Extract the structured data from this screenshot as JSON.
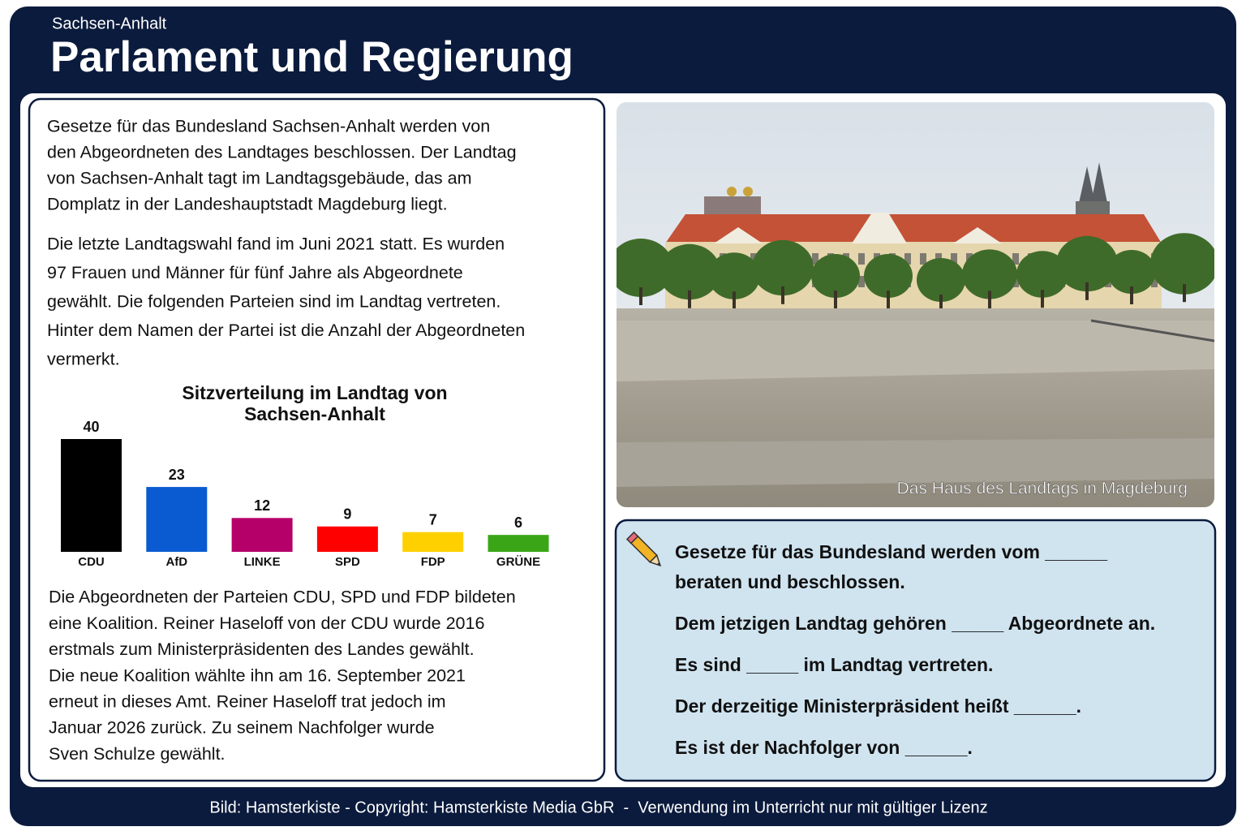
{
  "header": {
    "region": "Sachsen-Anhalt",
    "title": "Parlament und Regierung"
  },
  "intro": {
    "paragraphs": [
      [
        "Gesetze für das Bundesland Sachsen-Anhalt werden von",
        "den Abgeordneten des Landtages beschlossen. Der Landtag",
        "von Sachsen-Anhalt tagt im Landtagsgebäude, das am",
        "Domplatz in der Landeshauptstadt Magdeburg liegt."
      ],
      [
        "Die letzte Landtagswahl fand im Juni 2021 statt. Es wurden",
        "97 Frauen und Männer für fünf Jahre als Abgeordnete",
        "gewählt. Die folgenden Parteien sind im Landtag vertreten.",
        "Hinter dem Namen der Partei ist die Anzahl der Abgeordneten",
        "vermerkt."
      ]
    ]
  },
  "chart": {
    "type": "bar",
    "title": [
      "Sitzverteilung im Landtag von",
      "Sachsen-Anhalt"
    ],
    "categories": [
      "CDU",
      "AfD",
      "LINKE",
      "SPD",
      "FDP",
      "GRÜNE"
    ],
    "values": [
      40,
      23,
      12,
      9,
      7,
      6
    ],
    "colors": [
      "#000000",
      "#0a5bd1",
      "#b5006a",
      "#ff0000",
      "#ffd000",
      "#3aa617"
    ]
  },
  "outro": {
    "lines": [
      "Die Abgeordneten der Parteien CDU, SPD und FDP bildeten",
      "eine Koalition. Reiner Haseloff von der CDU wurde 2016",
      "erstmals zum Ministerpräsidenten des Landes gewählt.",
      "Die neue Koalition wählte ihn am 16. September 2021",
      "erneut in dieses Amt. Reiner Haseloff trat jedoch im",
      "Januar 2026 zurück. Zu seinem Nachfolger wurde",
      "Sven Schulze gewählt."
    ]
  },
  "photo": {
    "caption": "Das Haus des Landtags in Magdeburg"
  },
  "exercise": {
    "items": [
      [
        "Gesetze für das Bundesland werden vom ______",
        "beraten und beschlossen."
      ],
      [
        "Dem jetzigen Landtag gehören _____ Abgeordnete an."
      ],
      [
        "Es sind _____ im Landtag vertreten."
      ],
      [
        "Der derzeitige Ministerpräsident heißt ______."
      ],
      [
        "Es ist der Nachfolger von ______."
      ]
    ]
  },
  "footer": "Bild: Hamsterkiste - Copyright: Hamsterkiste Media GbR  -  Verwendung im Unterricht nur mit gültiger Lizenz"
}
